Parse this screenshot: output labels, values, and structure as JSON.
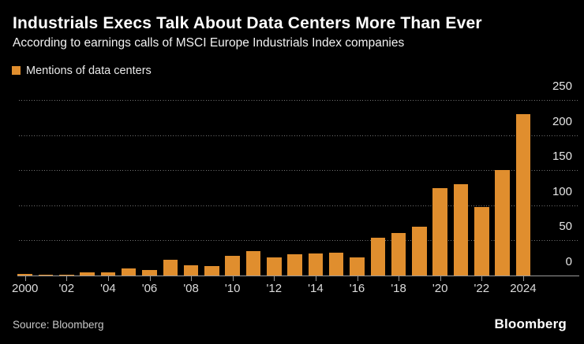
{
  "header": {
    "title": "Industrials Execs Talk About Data Centers More Than Ever",
    "subtitle": "According to earnings calls of MSCI Europe Industrials Index companies"
  },
  "legend": {
    "label": "Mentions of data centers",
    "swatch_color": "#E08E2E"
  },
  "footer": {
    "source": "Source: Bloomberg",
    "brand": "Bloomberg"
  },
  "colors": {
    "background": "#000000",
    "bar": "#E08E2E",
    "title_text": "#FFFFFF",
    "subtitle_text": "#F2F2F2",
    "legend_text": "#E9E9E9",
    "y_axis_label_text": "#E6E6E6",
    "x_axis_label_text": "#DCDCDC",
    "gridline": "#777777",
    "axis_line": "#9A9A9A",
    "source_text": "#C8C8C8",
    "logo_text": "#FFFFFF"
  },
  "chart_data": {
    "type": "bar",
    "title": "Industrials Execs Talk About Data Centers More Than Ever",
    "subtitle": "According to earnings calls of MSCI Europe Industrials Index companies",
    "categories": [
      2000,
      2001,
      2002,
      2003,
      2004,
      2005,
      2006,
      2007,
      2008,
      2009,
      2010,
      2011,
      2012,
      2013,
      2014,
      2015,
      2016,
      2017,
      2018,
      2019,
      2020,
      2021,
      2022,
      2023,
      2024
    ],
    "series": [
      {
        "name": "Mentions of data centers",
        "values": [
          2,
          1,
          1,
          4,
          5,
          10,
          8,
          22,
          15,
          14,
          28,
          35,
          26,
          30,
          31,
          33,
          26,
          54,
          61,
          69,
          125,
          130,
          97,
          150,
          230
        ]
      }
    ],
    "x_tick_labels": [
      "2000",
      "'02",
      "'04",
      "'06",
      "'08",
      "'10",
      "'12",
      "'14",
      "'16",
      "'18",
      "'20",
      "'22",
      "2024"
    ],
    "xlabel": "",
    "ylabel": "",
    "ylim": [
      0,
      250
    ],
    "yticks": [
      0,
      50,
      100,
      150,
      200,
      250
    ],
    "y_axis_side": "right",
    "grid": "horizontal-dotted",
    "legend_position": "top-left",
    "source": "Source: Bloomberg"
  }
}
